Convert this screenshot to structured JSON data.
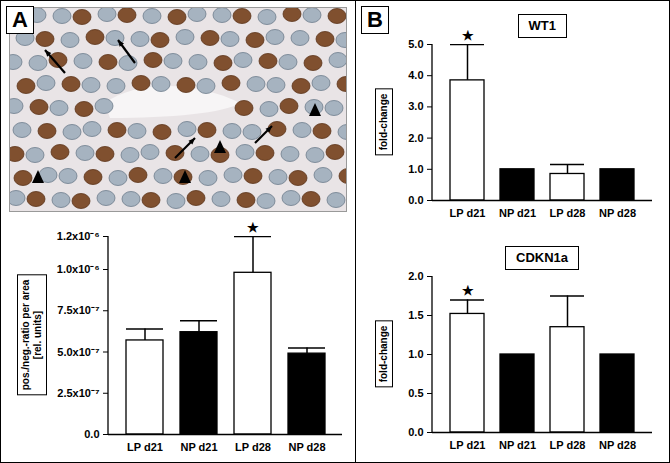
{
  "chart_data": [
    {
      "type": "bar",
      "panel": "A",
      "ylabel": [
        "pos./neg.-ratio per area",
        "[rel. units]"
      ],
      "categories": [
        "LP d21",
        "NP d21",
        "LP d28",
        "NP d28"
      ],
      "values": [
        5.7e-07,
        6.2e-07,
        9.8e-07,
        4.9e-07
      ],
      "errors": [
        7e-08,
        7e-08,
        2.2e-07,
        3.5e-08
      ],
      "colors": [
        "#ffffff",
        "#000000",
        "#ffffff",
        "#000000"
      ],
      "annotations": [
        {
          "category": "LP d28",
          "text": "★"
        }
      ],
      "ylim": [
        0,
        1.2e-06
      ],
      "yticks": [
        {
          "value": 0,
          "label": "0.0"
        },
        {
          "value": 2.5e-07,
          "label": "2.5x10⁻⁷"
        },
        {
          "value": 5e-07,
          "label": "5.0x10⁻⁷"
        },
        {
          "value": 7.5e-07,
          "label": "7.5x10⁻⁷"
        },
        {
          "value": 1e-06,
          "label": "1.0x10⁻⁶"
        },
        {
          "value": 1.2e-06,
          "label": "1.2x10⁻⁶"
        }
      ]
    },
    {
      "type": "bar",
      "panel": "B",
      "title": "WT1",
      "ylabel": [
        "fold-change"
      ],
      "categories": [
        "LP d21",
        "NP d21",
        "LP d28",
        "NP d28"
      ],
      "values": [
        3.85,
        1.0,
        0.85,
        1.0
      ],
      "errors": [
        1.15,
        null,
        0.3,
        null
      ],
      "colors": [
        "#ffffff",
        "#000000",
        "#ffffff",
        "#000000"
      ],
      "annotations": [
        {
          "category": "LP d21",
          "text": "★"
        }
      ],
      "ylim": [
        0,
        5
      ],
      "yticks": [
        {
          "value": 0,
          "label": "0.0"
        },
        {
          "value": 1,
          "label": "1.0"
        },
        {
          "value": 2,
          "label": "2.0"
        },
        {
          "value": 3,
          "label": "3.0"
        },
        {
          "value": 4,
          "label": "4.0"
        },
        {
          "value": 5,
          "label": "5.0"
        }
      ]
    },
    {
      "type": "bar",
      "panel": "B",
      "title": "CDKN1a",
      "ylabel": [
        "fold-change"
      ],
      "categories": [
        "LP d21",
        "NP d21",
        "LP d28",
        "NP d28"
      ],
      "values": [
        1.52,
        1.0,
        1.35,
        1.0
      ],
      "errors": [
        0.18,
        null,
        0.4,
        null
      ],
      "colors": [
        "#ffffff",
        "#000000",
        "#ffffff",
        "#000000"
      ],
      "annotations": [
        {
          "category": "LP d21",
          "text": "★"
        }
      ],
      "ylim": [
        0,
        2
      ],
      "yticks": [
        {
          "value": 0,
          "label": "0.0"
        },
        {
          "value": 0.5,
          "label": "0.5"
        },
        {
          "value": 1,
          "label": "1.0"
        },
        {
          "value": 1.5,
          "label": "1.5"
        },
        {
          "value": 2,
          "label": "2.0"
        }
      ]
    }
  ]
}
